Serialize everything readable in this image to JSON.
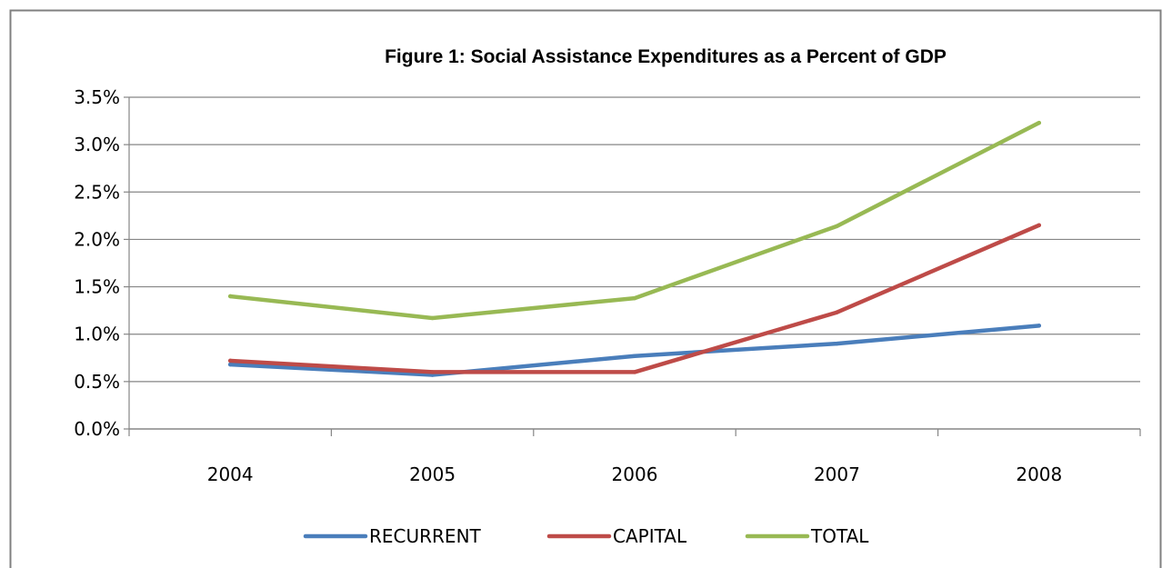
{
  "chart_data": {
    "type": "line",
    "title": "Figure 1:  Social Assistance Expenditures as a Percent of GDP",
    "xlabel": "",
    "ylabel": "",
    "categories": [
      "2004",
      "2005",
      "2006",
      "2007",
      "2008"
    ],
    "ylim": [
      0,
      3.5
    ],
    "yticks": [
      "0.0%",
      "0.5%",
      "1.0%",
      "1.5%",
      "2.0%",
      "2.5%",
      "3.0%",
      "3.5%"
    ],
    "grid": true,
    "legend_position": "bottom",
    "series": [
      {
        "name": "RECURRENT",
        "color": "#4a7ebb",
        "values": [
          0.68,
          0.57,
          0.77,
          0.9,
          1.09
        ]
      },
      {
        "name": "CAPITAL",
        "color": "#be4b48",
        "values": [
          0.72,
          0.6,
          0.6,
          1.23,
          2.15
        ]
      },
      {
        "name": "TOTAL",
        "color": "#98b954",
        "values": [
          1.4,
          1.17,
          1.38,
          2.14,
          3.23
        ]
      }
    ]
  }
}
